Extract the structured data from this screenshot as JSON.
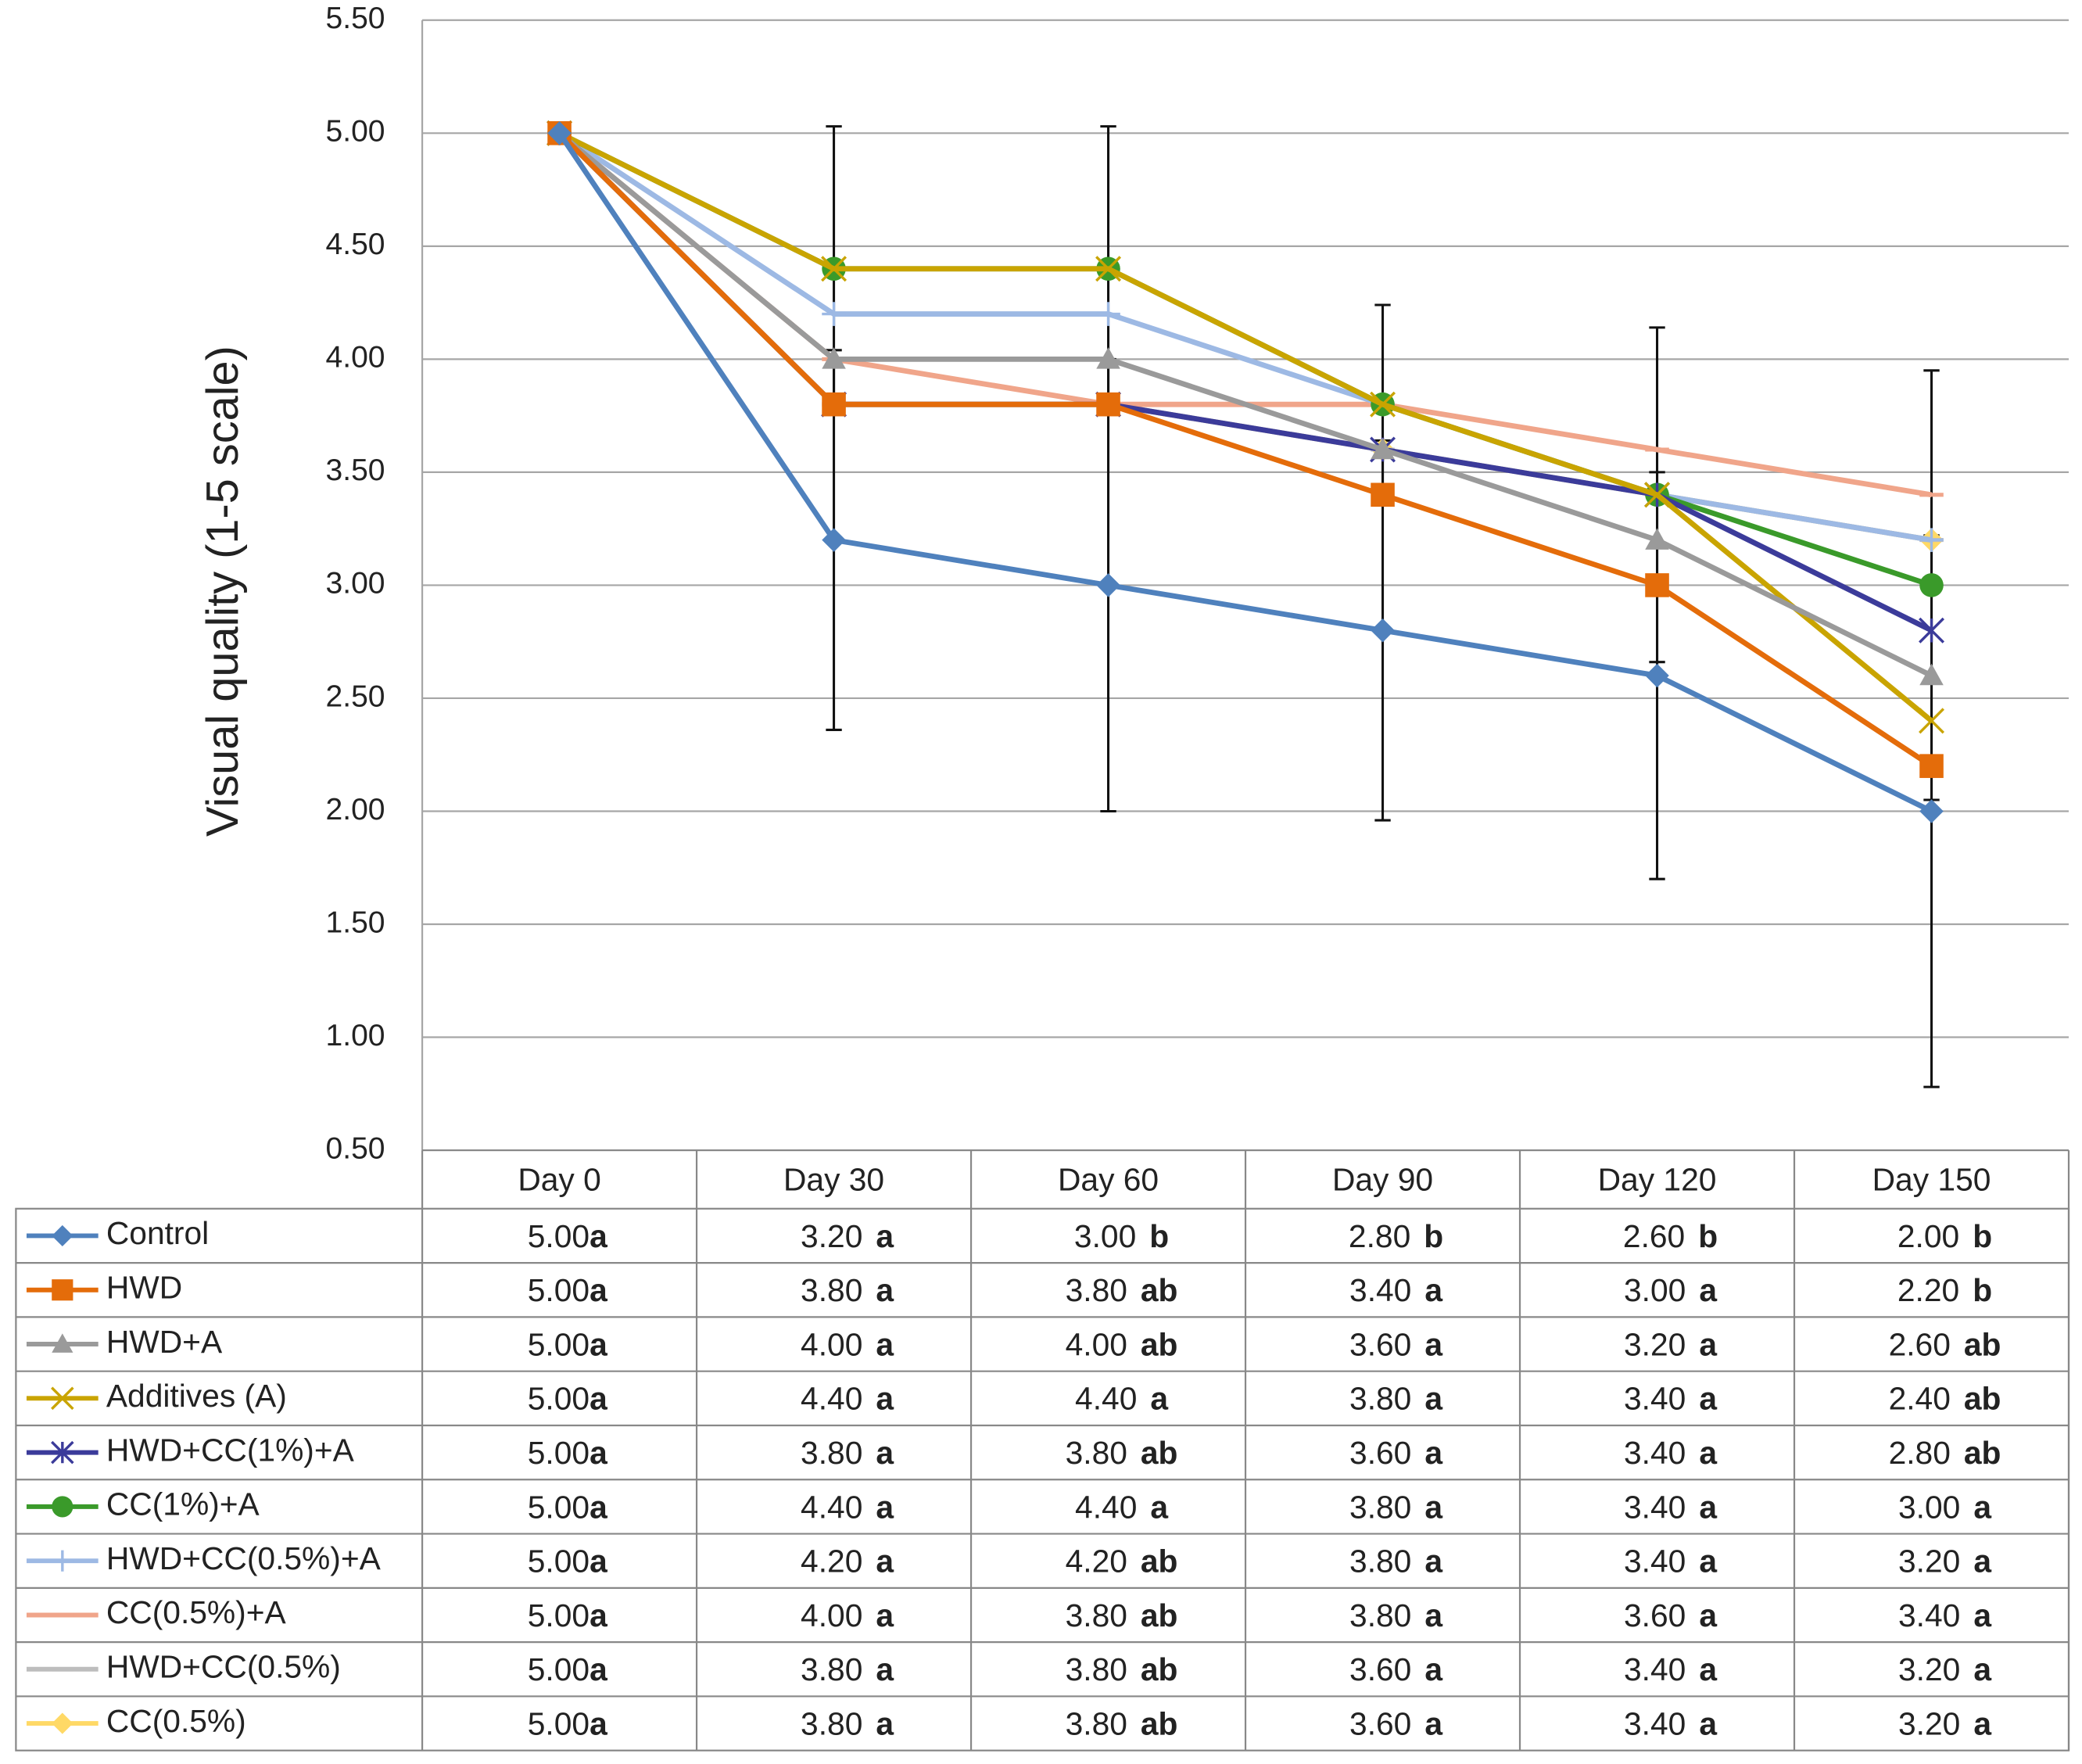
{
  "chart_data": {
    "type": "line",
    "y_label": "Visual quality (1-5 scale)",
    "categories": [
      "Day 0",
      "Day 30",
      "Day 60",
      "Day 90",
      "Day 120",
      "Day 150"
    ],
    "ylim": [
      0.5,
      5.5
    ],
    "yticks": [
      {
        "value": 0.5,
        "label": "0.50"
      },
      {
        "value": 1,
        "label": "1.00"
      },
      {
        "value": 1.5,
        "label": "1.50"
      },
      {
        "value": 2,
        "label": "2.00"
      },
      {
        "value": 2.5,
        "label": "2.50"
      },
      {
        "value": 3,
        "label": "3.00"
      },
      {
        "value": 3.5,
        "label": "3.50"
      },
      {
        "value": 4,
        "label": "4.00"
      },
      {
        "value": 4.5,
        "label": "4.50"
      },
      {
        "value": 5,
        "label": "5.00"
      },
      {
        "value": 5.5,
        "label": "5.50"
      }
    ],
    "grid": true,
    "series": [
      {
        "name": "Control",
        "color": "#4f81bd",
        "marker": "diamond",
        "values": [
          5,
          3.2,
          3,
          2.8,
          2.6,
          2
        ],
        "value_labels": [
          "5.00",
          "3.20",
          "3.00",
          "2.80",
          "2.60",
          "2.00"
        ],
        "letters": [
          "a",
          "a",
          "b",
          "b",
          "b",
          "b"
        ],
        "errors": [
          null,
          0.84,
          1,
          0.84,
          0.9,
          1.22
        ]
      },
      {
        "name": "HWD",
        "color": "#e46c0a",
        "marker": "square",
        "values": [
          5,
          3.8,
          3.8,
          3.4,
          3,
          2.2
        ],
        "value_labels": [
          "5.00",
          "3.80",
          "3.80",
          "3.40",
          "3.00",
          "2.20"
        ],
        "letters": [
          "a",
          "a",
          "ab",
          "a",
          "a",
          "b"
        ]
      },
      {
        "name": "HWD+A",
        "color": "#9a9a9a",
        "marker": "triangle",
        "values": [
          5,
          4,
          4,
          3.6,
          3.2,
          2.6
        ],
        "value_labels": [
          "5.00",
          "4.00",
          "4.00",
          "3.60",
          "3.20",
          "2.60"
        ],
        "letters": [
          "a",
          "a",
          "ab",
          "a",
          "a",
          "ab"
        ]
      },
      {
        "name": "Additives (A)",
        "color": "#c9a400",
        "marker": "x",
        "values": [
          5,
          4.4,
          4.4,
          3.8,
          3.4,
          2.4
        ],
        "value_labels": [
          "5.00",
          "4.40",
          "4.40",
          "3.80",
          "3.40",
          "2.40"
        ],
        "letters": [
          "a",
          "a",
          "a",
          "a",
          "a",
          "ab"
        ]
      },
      {
        "name": "HWD+CC(1%)+A",
        "color": "#3b3b9a",
        "marker": "star",
        "values": [
          5,
          3.8,
          3.8,
          3.6,
          3.4,
          2.8
        ],
        "value_labels": [
          "5.00",
          "3.80",
          "3.80",
          "3.60",
          "3.40",
          "2.80"
        ],
        "letters": [
          "a",
          "a",
          "ab",
          "a",
          "a",
          "ab"
        ]
      },
      {
        "name": "CC(1%)+A",
        "color": "#3a9a2a",
        "marker": "circle",
        "values": [
          5,
          4.4,
          4.4,
          3.8,
          3.4,
          3
        ],
        "value_labels": [
          "5.00",
          "4.40",
          "4.40",
          "3.80",
          "3.40",
          "3.00"
        ],
        "letters": [
          "a",
          "a",
          "a",
          "a",
          "a",
          "a"
        ],
        "errors": [
          null,
          0.63,
          0.63,
          0.44,
          0.74,
          0.95
        ]
      },
      {
        "name": "HWD+CC(0.5%)+A",
        "color": "#9db9e4",
        "marker": "plus",
        "values": [
          5,
          4.2,
          4.2,
          3.8,
          3.4,
          3.2
        ],
        "value_labels": [
          "5.00",
          "4.20",
          "4.20",
          "3.80",
          "3.40",
          "3.20"
        ],
        "letters": [
          "a",
          "a",
          "ab",
          "a",
          "a",
          "a"
        ]
      },
      {
        "name": "CC(0.5%)+A",
        "color": "#f0a58a",
        "marker": "dash",
        "values": [
          5,
          4,
          3.8,
          3.8,
          3.6,
          3.4
        ],
        "value_labels": [
          "5.00",
          "4.00",
          "3.80",
          "3.80",
          "3.60",
          "3.40"
        ],
        "letters": [
          "a",
          "a",
          "ab",
          "a",
          "a",
          "a"
        ]
      },
      {
        "name": "HWD+CC(0.5%)",
        "color": "#bdbdbd",
        "marker": "dash",
        "values": [
          5,
          3.8,
          3.8,
          3.6,
          3.4,
          3.2
        ],
        "value_labels": [
          "5.00",
          "3.80",
          "3.80",
          "3.60",
          "3.40",
          "3.20"
        ],
        "letters": [
          "a",
          "a",
          "ab",
          "a",
          "a",
          "a"
        ]
      },
      {
        "name": "CC(0.5%)",
        "color": "#ffd966",
        "marker": "diamond",
        "values": [
          5,
          3.8,
          3.8,
          3.6,
          3.4,
          3.2
        ],
        "value_labels": [
          "5.00",
          "3.80",
          "3.80",
          "3.60",
          "3.40",
          "3.20"
        ],
        "letters": [
          "a",
          "a",
          "ab",
          "a",
          "a",
          "a"
        ]
      }
    ]
  }
}
